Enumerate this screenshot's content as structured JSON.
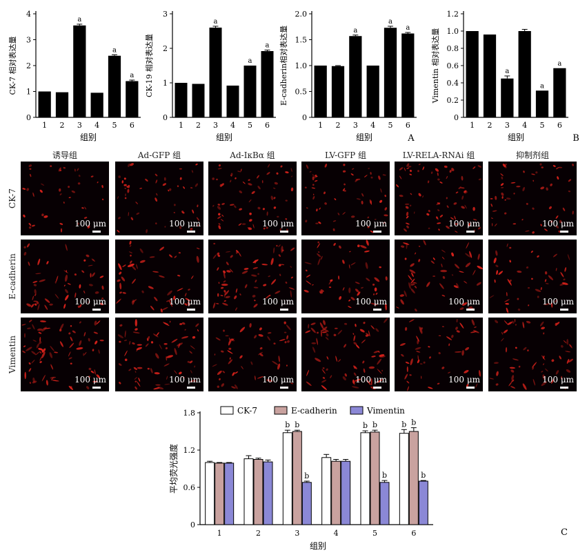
{
  "panel_letters": {
    "a": "A",
    "b": "B",
    "c": "C"
  },
  "micrograph": {
    "column_titles": [
      "诱导组",
      "Ad-GFP 组",
      "Ad-IκBα 组",
      "LV-GFP 组",
      "LV-RELA-RNAi 组",
      "抑制剂组"
    ],
    "row_labels": [
      "CK-7",
      "E-cadherin",
      "Vimentin"
    ],
    "scale_bar_label": "100 μm",
    "colors": {
      "background": "#070003",
      "stain": "#e0231c"
    },
    "cell_density": [
      [
        0.25,
        0.45,
        0.7,
        0.6,
        0.85,
        0.55
      ],
      [
        0.55,
        0.45,
        0.8,
        0.45,
        0.5,
        0.35
      ],
      [
        0.95,
        0.85,
        0.5,
        0.85,
        0.45,
        0.6
      ]
    ]
  },
  "chart_data": [
    {
      "type": "bar",
      "ylabel": "CK-7 相对表达量",
      "xlabel": "组别",
      "categories": [
        "1",
        "2",
        "3",
        "4",
        "5",
        "6"
      ],
      "values": [
        1.0,
        0.97,
        3.55,
        0.95,
        2.38,
        1.4
      ],
      "errors": [
        0.0,
        0.0,
        0.05,
        0.0,
        0.04,
        0.04
      ],
      "annotations": [
        "",
        "",
        "a",
        "",
        "a",
        "a"
      ],
      "ylim": [
        0,
        4
      ],
      "yticks": [
        0,
        1,
        2,
        3,
        4
      ],
      "color": "#000000"
    },
    {
      "type": "bar",
      "ylabel": "CK-19 相对表达量",
      "xlabel": "组别",
      "categories": [
        "1",
        "2",
        "3",
        "4",
        "5",
        "6"
      ],
      "values": [
        1.0,
        0.97,
        2.6,
        0.92,
        1.5,
        1.92
      ],
      "errors": [
        0.0,
        0.0,
        0.04,
        0.0,
        0.0,
        0.03
      ],
      "annotations": [
        "",
        "",
        "a",
        "",
        "a",
        "a"
      ],
      "ylim": [
        0,
        3
      ],
      "yticks": [
        0,
        1,
        2,
        3
      ],
      "color": "#000000"
    },
    {
      "type": "bar",
      "ylabel": "E-cadherin相对表达量",
      "xlabel": "组别",
      "categories": [
        "1",
        "2",
        "3",
        "4",
        "5",
        "6"
      ],
      "values": [
        1.0,
        0.99,
        1.57,
        1.0,
        1.73,
        1.62
      ],
      "errors": [
        0.0,
        0.01,
        0.02,
        0.0,
        0.03,
        0.02
      ],
      "annotations": [
        "",
        "",
        "a",
        "",
        "a",
        "a"
      ],
      "ylim": [
        0,
        2.0
      ],
      "yticks": [
        0,
        0.5,
        1.0,
        1.5,
        2.0
      ],
      "ytick_labels": [
        "0",
        "0.5",
        "1.0",
        "1.5",
        "2.0"
      ],
      "color": "#000000"
    },
    {
      "type": "bar",
      "ylabel": "Vimentin 相对表达量",
      "xlabel": "组别",
      "categories": [
        "1",
        "2",
        "3",
        "4",
        "5",
        "6"
      ],
      "values": [
        1.0,
        0.96,
        0.45,
        1.0,
        0.31,
        0.57
      ],
      "errors": [
        0.0,
        0.0,
        0.03,
        0.02,
        0.0,
        0.0
      ],
      "annotations": [
        "",
        "",
        "a",
        "",
        "a",
        "a"
      ],
      "ylim": [
        0,
        1.2
      ],
      "yticks": [
        0,
        0.2,
        0.4,
        0.6,
        0.8,
        1.0,
        1.2
      ],
      "ytick_labels": [
        "0",
        "0.2",
        "0.4",
        "0.6",
        "0.8",
        "1.0",
        "1.2"
      ],
      "color": "#000000"
    },
    {
      "type": "bar",
      "ylabel": "平均荧光强度",
      "xlabel": "组别",
      "categories": [
        "1",
        "2",
        "3",
        "4",
        "5",
        "6"
      ],
      "ylim": [
        0,
        1.8
      ],
      "yticks": [
        0,
        0.6,
        1.2,
        1.8
      ],
      "legend_position": "top",
      "series": [
        {
          "name": "CK-7",
          "color": "#ffffff",
          "values": [
            1.0,
            1.06,
            1.48,
            1.08,
            1.48,
            1.47
          ],
          "errors": [
            0.02,
            0.05,
            0.04,
            0.05,
            0.03,
            0.06
          ],
          "annotations": [
            "",
            "",
            "b",
            "",
            "b",
            "b"
          ]
        },
        {
          "name": "E-cadherin",
          "color": "#c9a29f",
          "values": [
            0.99,
            1.05,
            1.5,
            1.02,
            1.49,
            1.5
          ],
          "errors": [
            0.01,
            0.02,
            0.02,
            0.03,
            0.03,
            0.06
          ],
          "annotations": [
            "",
            "",
            "b",
            "",
            "b",
            "b"
          ]
        },
        {
          "name": "Vimentin",
          "color": "#8b88d6",
          "values": [
            0.99,
            1.01,
            0.68,
            1.02,
            0.68,
            0.7
          ],
          "errors": [
            0.01,
            0.03,
            0.02,
            0.03,
            0.03,
            0.01
          ],
          "annotations": [
            "",
            "",
            "b",
            "",
            "b",
            "b"
          ]
        }
      ]
    }
  ]
}
